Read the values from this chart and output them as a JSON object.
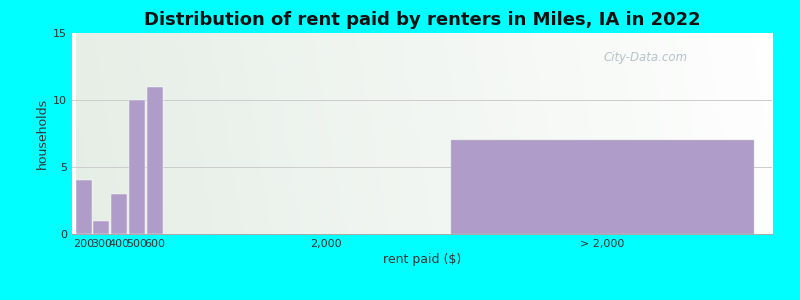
{
  "title": "Distribution of rent paid by renters in Miles, IA in 2022",
  "xlabel": "rent paid ($)",
  "ylabel": "households",
  "bar_color": "#b09cc8",
  "background_outer": "#00ffff",
  "background_inner_left": "#d8f0d0",
  "background_inner_right": "#f0f4f0",
  "ylim": [
    0,
    15
  ],
  "yticks": [
    0,
    5,
    10,
    15
  ],
  "values": [
    4,
    1,
    3,
    10,
    11,
    0,
    7
  ],
  "tick_labels": [
    "200",
    "300",
    "400",
    "500",
    "600",
    "2,000",
    "> 2,000"
  ],
  "watermark": "City-Data.com",
  "title_fontsize": 13,
  "label_fontsize": 9,
  "tick_fontsize": 8
}
